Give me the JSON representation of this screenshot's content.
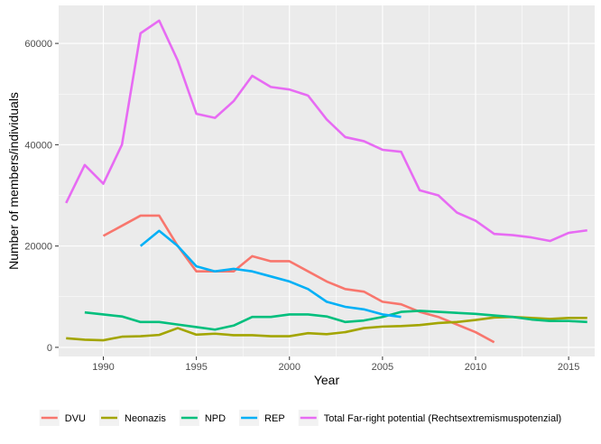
{
  "chart_data": {
    "type": "line",
    "xlabel": "Year",
    "ylabel": "Number of members/individuals",
    "xlim": [
      1987.6,
      2016.4
    ],
    "ylim": [
      -1800,
      67500
    ],
    "x_ticks": [
      1990,
      1995,
      2000,
      2005,
      2010,
      2015
    ],
    "x_tick_labels": [
      "1990",
      "1995",
      "2000",
      "2005",
      "2010",
      "2015"
    ],
    "y_ticks": [
      0,
      20000,
      40000,
      60000
    ],
    "y_tick_labels": [
      "0",
      "20000",
      "40000",
      "60000"
    ],
    "grid": true,
    "legend_position": "bottom",
    "series": [
      {
        "name": "DVU",
        "color": "#F8766D",
        "x": [
          1990,
          1991,
          1992,
          1993,
          1994,
          1995,
          1996,
          1997,
          1998,
          1999,
          2000,
          2001,
          2002,
          2003,
          2004,
          2005,
          2006,
          2007,
          2008,
          2009,
          2010,
          2011
        ],
        "y": [
          22000,
          24000,
          26000,
          26000,
          20000,
          15000,
          15000,
          15000,
          18000,
          17000,
          17000,
          15000,
          13000,
          11500,
          11000,
          9000,
          8500,
          7000,
          6000,
          4500,
          3000,
          1000
        ]
      },
      {
        "name": "Neonazis",
        "color": "#A3A500",
        "x": [
          1988,
          1989,
          1990,
          1991,
          1992,
          1993,
          1994,
          1995,
          1996,
          1997,
          1998,
          1999,
          2000,
          2001,
          2002,
          2003,
          2004,
          2005,
          2006,
          2007,
          2008,
          2009,
          2010,
          2011,
          2012,
          2013,
          2014,
          2015,
          2016
        ],
        "y": [
          1800,
          1500,
          1400,
          2100,
          2200,
          2450,
          3800,
          2500,
          2700,
          2400,
          2400,
          2200,
          2200,
          2800,
          2600,
          3000,
          3800,
          4100,
          4200,
          4400,
          4800,
          5000,
          5400,
          5900,
          6000,
          5800,
          5600,
          5800,
          5800
        ]
      },
      {
        "name": "NPD",
        "color": "#00BF7D",
        "x": [
          1989,
          1990,
          1991,
          1992,
          1993,
          1994,
          1995,
          1996,
          1997,
          1998,
          1999,
          2000,
          2001,
          2002,
          2003,
          2004,
          2005,
          2006,
          2007,
          2008,
          2009,
          2010,
          2011,
          2012,
          2013,
          2014,
          2015,
          2016
        ],
        "y": [
          6900,
          6500,
          6100,
          5000,
          5000,
          4500,
          4000,
          3500,
          4300,
          6000,
          6000,
          6500,
          6500,
          6100,
          5000,
          5300,
          6000,
          7000,
          7200,
          7000,
          6800,
          6600,
          6300,
          6000,
          5500,
          5200,
          5200,
          5000
        ]
      },
      {
        "name": "REP",
        "color": "#00B0F6",
        "x": [
          1992,
          1993,
          1994,
          1995,
          1996,
          1997,
          1998,
          1999,
          2000,
          2001,
          2002,
          2003,
          2004,
          2005,
          2006
        ],
        "y": [
          20000,
          23000,
          20000,
          16000,
          15000,
          15500,
          15000,
          14000,
          13000,
          11500,
          9000,
          8000,
          7500,
          6500,
          6000
        ]
      },
      {
        "name": "Total Far-right potential (Rechtsextremismuspotenzial)",
        "color": "#E76BF3",
        "x": [
          1988,
          1989,
          1990,
          1991,
          1992,
          1993,
          1994,
          1995,
          1996,
          1997,
          1998,
          1999,
          2000,
          2001,
          2002,
          2003,
          2004,
          2005,
          2006,
          2007,
          2008,
          2009,
          2010,
          2011,
          2012,
          2013,
          2014,
          2015,
          2016
        ],
        "y": [
          28500,
          36000,
          32300,
          40000,
          62000,
          64500,
          56600,
          46100,
          45300,
          48600,
          53600,
          51400,
          50900,
          49700,
          45000,
          41500,
          40700,
          39000,
          38600,
          31000,
          30000,
          26600,
          25000,
          22400,
          22150,
          21700,
          21000,
          22600,
          23100
        ]
      }
    ]
  }
}
